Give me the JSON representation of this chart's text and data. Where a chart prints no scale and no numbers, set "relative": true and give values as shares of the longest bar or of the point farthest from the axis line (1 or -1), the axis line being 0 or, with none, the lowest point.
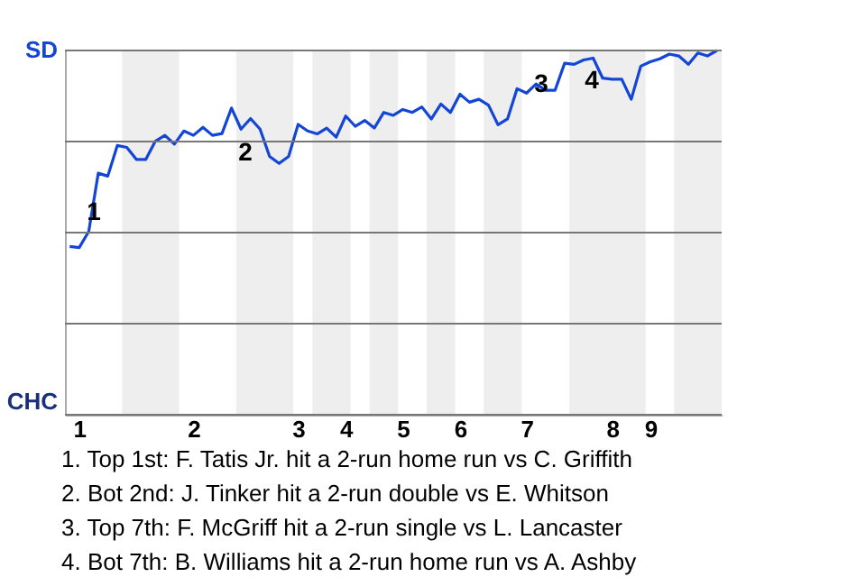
{
  "chart_data": {
    "type": "line",
    "relative": true,
    "categories": [
      null,
      "1",
      null,
      null,
      null,
      null,
      null,
      null,
      null,
      null,
      null,
      null,
      null,
      "2",
      null,
      null,
      null,
      null,
      null,
      null,
      null,
      null,
      null,
      null,
      "3",
      null,
      null,
      null,
      null,
      "4",
      null,
      null,
      null,
      null,
      null,
      "5",
      null,
      null,
      null,
      null,
      null,
      "6",
      null,
      null,
      null,
      null,
      null,
      null,
      "7",
      null,
      null,
      null,
      null,
      null,
      null,
      null,
      null,
      "8",
      null,
      null,
      null,
      "9",
      null,
      null,
      null,
      null,
      null,
      null,
      null
    ],
    "series": [
      {
        "color": "#1446d6",
        "values": [
          0.462,
          0.459,
          0.503,
          0.663,
          0.655,
          0.739,
          0.734,
          0.701,
          0.701,
          0.751,
          0.767,
          0.743,
          0.779,
          0.767,
          0.789,
          0.767,
          0.772,
          0.842,
          0.784,
          0.813,
          0.784,
          0.709,
          0.69,
          0.709,
          0.797,
          0.779,
          0.771,
          0.787,
          0.762,
          0.82,
          0.792,
          0.808,
          0.787,
          0.83,
          0.822,
          0.838,
          0.83,
          0.845,
          0.812,
          0.853,
          0.83,
          0.88,
          0.858,
          0.866,
          0.85,
          0.796,
          0.812,
          0.895,
          0.883,
          0.908,
          0.891,
          0.891,
          0.965,
          0.962,
          0.974,
          0.979,
          0.924,
          0.921,
          0.921,
          0.866,
          0.957,
          0.969,
          0.977,
          0.99,
          0.985,
          0.962,
          0.993,
          0.985,
          1
        ]
      }
    ],
    "ref_lines": [
      {
        "axis": "y",
        "value": 0,
        "label": "CHC",
        "color": "#777777"
      },
      {
        "axis": "y",
        "value": 0.25,
        "color": "#777777"
      },
      {
        "axis": "y",
        "value": 0.5,
        "color": "#777777"
      },
      {
        "axis": "y",
        "value": 0.75,
        "color": "#777777"
      },
      {
        "axis": "y",
        "value": 1,
        "label": "SD",
        "color": "#777777"
      }
    ],
    "line_style": "solid",
    "annotations": [
      "1",
      "2",
      "3",
      "4",
      "1. Top 1st: F. Tatis Jr. hit a 2-run home run vs C. Griffith",
      "2. Bot 2nd: J. Tinker hit a 2-run double vs E. Whitson",
      "3. Top 7th: F. McGriff hit a 2-run single vs L. Lancaster",
      "4. Bot 7th: B. Williams hit a 2-run home run vs A. Ashby"
    ]
  }
}
